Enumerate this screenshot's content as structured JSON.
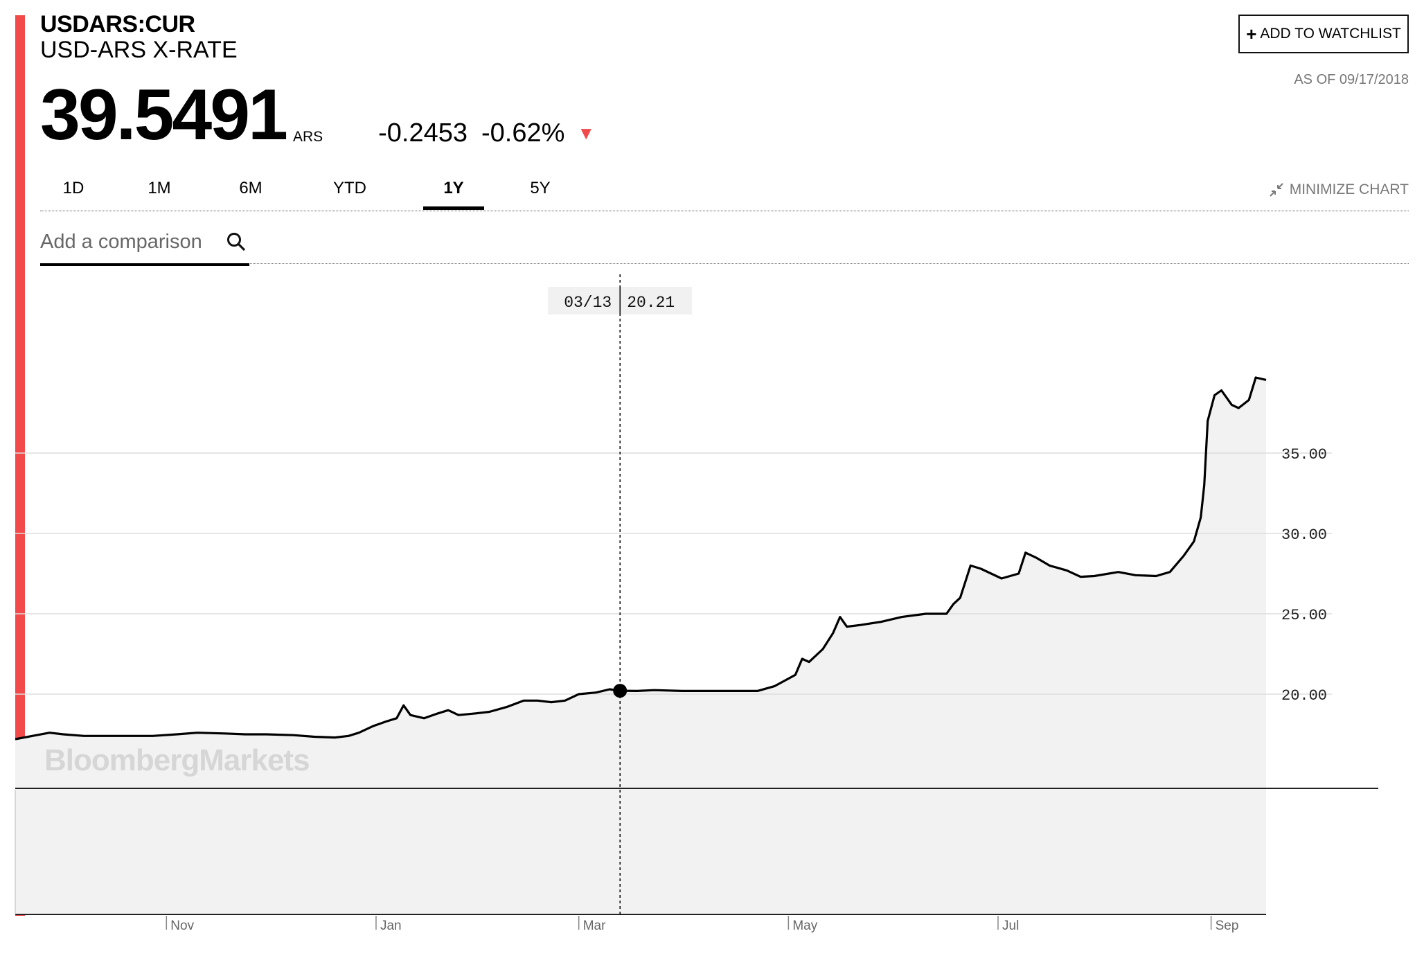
{
  "header": {
    "ticker": "USDARS:CUR",
    "name": "USD-ARS X-RATE",
    "price": "39.5491",
    "currency": "ARS",
    "change": "-0.2453",
    "change_pct": "-0.62%",
    "watchlist_label": "ADD TO WATCHLIST",
    "as_of": "AS OF 09/17/2018"
  },
  "tabs": [
    "1D",
    "1M",
    "6M",
    "YTD",
    "1Y",
    "5Y"
  ],
  "active_tab": "1Y",
  "minimize_label": "MINIMIZE CHART",
  "compare_placeholder": "Add a comparison",
  "colors": {
    "accent": "#f24a4a",
    "area": "#f2f2f2",
    "grid": "#dddddd",
    "line": "#000000"
  },
  "icons": [
    "plus-icon",
    "down-arrow-icon",
    "minimize-icon",
    "search-icon"
  ],
  "watermark": "BloombergMarkets",
  "chart_data": {
    "type": "area",
    "x_tick_labels": [
      "Nov",
      "Jan",
      "Mar",
      "May",
      "Jul",
      "Sep"
    ],
    "x_tick_dates": [
      "2017-11-01",
      "2018-01-01",
      "2018-03-01",
      "2018-05-01",
      "2018-07-01",
      "2018-09-01"
    ],
    "y_tick_values": [
      20,
      25,
      30,
      35
    ],
    "y_tick_labels": [
      "20.00",
      "25.00",
      "30.00",
      "35.00"
    ],
    "ylim": [
      14.48,
      41.21
    ],
    "xlim": [
      "2017-09-18",
      "2018-09-17"
    ],
    "crosshair": {
      "date_label": "03/13",
      "value_label": "20.21",
      "date": "2018-03-13",
      "value": 20.21
    },
    "series": [
      {
        "points": [
          [
            "2017-09-18",
            17.2
          ],
          [
            "2017-09-23",
            17.4
          ],
          [
            "2017-09-28",
            17.6
          ],
          [
            "2017-10-02",
            17.5
          ],
          [
            "2017-10-08",
            17.4
          ],
          [
            "2017-10-18",
            17.4
          ],
          [
            "2017-10-28",
            17.4
          ],
          [
            "2017-11-04",
            17.5
          ],
          [
            "2017-11-10",
            17.6
          ],
          [
            "2017-11-18",
            17.55
          ],
          [
            "2017-11-24",
            17.5
          ],
          [
            "2017-11-30",
            17.5
          ],
          [
            "2017-12-08",
            17.45
          ],
          [
            "2017-12-14",
            17.35
          ],
          [
            "2017-12-20",
            17.3
          ],
          [
            "2017-12-24",
            17.4
          ],
          [
            "2017-12-27",
            17.6
          ],
          [
            "2017-12-31",
            18.0
          ],
          [
            "2018-01-04",
            18.3
          ],
          [
            "2018-01-07",
            18.5
          ],
          [
            "2018-01-09",
            19.3
          ],
          [
            "2018-01-11",
            18.7
          ],
          [
            "2018-01-15",
            18.5
          ],
          [
            "2018-01-19",
            18.8
          ],
          [
            "2018-01-22",
            19.0
          ],
          [
            "2018-01-25",
            18.7
          ],
          [
            "2018-01-30",
            18.8
          ],
          [
            "2018-02-03",
            18.9
          ],
          [
            "2018-02-08",
            19.2
          ],
          [
            "2018-02-13",
            19.6
          ],
          [
            "2018-02-17",
            19.6
          ],
          [
            "2018-02-21",
            19.5
          ],
          [
            "2018-02-25",
            19.6
          ],
          [
            "2018-03-01",
            20.0
          ],
          [
            "2018-03-06",
            20.1
          ],
          [
            "2018-03-10",
            20.3
          ],
          [
            "2018-03-13",
            20.21
          ],
          [
            "2018-03-18",
            20.2
          ],
          [
            "2018-03-23",
            20.25
          ],
          [
            "2018-03-31",
            20.2
          ],
          [
            "2018-04-08",
            20.2
          ],
          [
            "2018-04-16",
            20.2
          ],
          [
            "2018-04-22",
            20.2
          ],
          [
            "2018-04-27",
            20.5
          ],
          [
            "2018-05-03",
            21.2
          ],
          [
            "2018-05-05",
            22.2
          ],
          [
            "2018-05-07",
            22.0
          ],
          [
            "2018-05-11",
            22.8
          ],
          [
            "2018-05-14",
            23.8
          ],
          [
            "2018-05-16",
            24.8
          ],
          [
            "2018-05-18",
            24.2
          ],
          [
            "2018-05-22",
            24.3
          ],
          [
            "2018-05-28",
            24.5
          ],
          [
            "2018-06-03",
            24.8
          ],
          [
            "2018-06-10",
            25.0
          ],
          [
            "2018-06-16",
            25.0
          ],
          [
            "2018-06-18",
            25.6
          ],
          [
            "2018-06-20",
            26.0
          ],
          [
            "2018-06-23",
            28.0
          ],
          [
            "2018-06-26",
            27.8
          ],
          [
            "2018-06-29",
            27.5
          ],
          [
            "2018-07-02",
            27.2
          ],
          [
            "2018-07-07",
            27.5
          ],
          [
            "2018-07-09",
            28.8
          ],
          [
            "2018-07-12",
            28.5
          ],
          [
            "2018-07-16",
            28.0
          ],
          [
            "2018-07-21",
            27.7
          ],
          [
            "2018-07-25",
            27.3
          ],
          [
            "2018-07-29",
            27.35
          ],
          [
            "2018-08-05",
            27.6
          ],
          [
            "2018-08-10",
            27.4
          ],
          [
            "2018-08-16",
            27.35
          ],
          [
            "2018-08-20",
            27.6
          ],
          [
            "2018-08-24",
            28.6
          ],
          [
            "2018-08-27",
            29.5
          ],
          [
            "2018-08-29",
            31.0
          ],
          [
            "2018-08-30",
            33.0
          ],
          [
            "2018-08-31",
            37.0
          ],
          [
            "2018-09-02",
            38.6
          ],
          [
            "2018-09-04",
            38.9
          ],
          [
            "2018-09-07",
            38.0
          ],
          [
            "2018-09-09",
            37.8
          ],
          [
            "2018-09-12",
            38.3
          ],
          [
            "2018-09-14",
            39.7
          ],
          [
            "2018-09-17",
            39.55
          ]
        ]
      }
    ]
  }
}
